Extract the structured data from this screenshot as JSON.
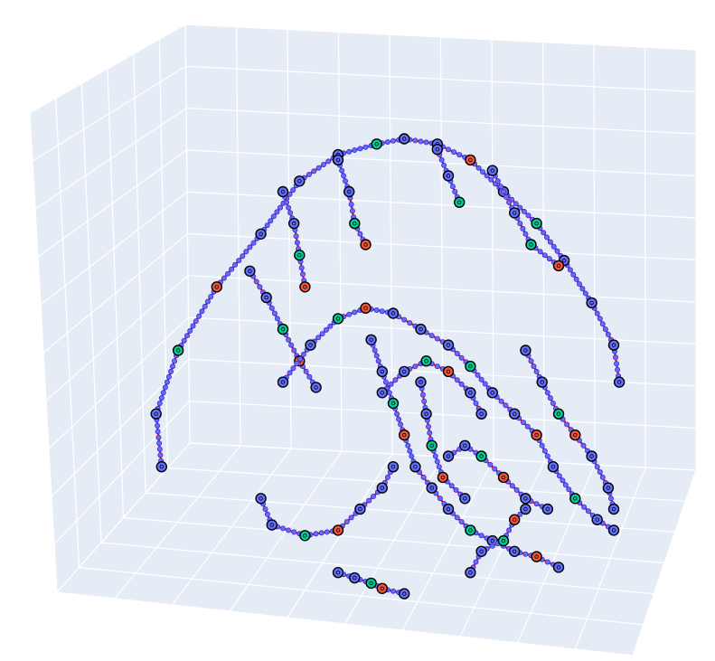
{
  "chart_data": {
    "type": "scatter3d",
    "title": "",
    "mode": "lines+markers",
    "scene": {
      "background": "#e5ecf6",
      "gridcolor": "#ffffff",
      "grid": true,
      "tick_labels": false,
      "axis_titles": false
    },
    "series": [
      {
        "traces": [
          {
            "color": "#ff0000",
            "points": [
              [
                0.08,
                0.72
              ],
              [
                0.07,
                0.62
              ],
              [
                0.11,
                0.5
              ],
              [
                0.18,
                0.38
              ],
              [
                0.26,
                0.28
              ],
              [
                0.33,
                0.18
              ],
              [
                0.4,
                0.13
              ],
              [
                0.47,
                0.11
              ],
              [
                0.52,
                0.1
              ],
              [
                0.58,
                0.11
              ],
              [
                0.64,
                0.14
              ],
              [
                0.7,
                0.2
              ],
              [
                0.76,
                0.26
              ],
              [
                0.81,
                0.33
              ],
              [
                0.86,
                0.41
              ],
              [
                0.9,
                0.49
              ],
              [
                0.91,
                0.56
              ]
            ]
          },
          {
            "color": "#ff0000",
            "points": [
              [
                0.3,
                0.2
              ],
              [
                0.32,
                0.26
              ],
              [
                0.33,
                0.32
              ],
              [
                0.34,
                0.38
              ]
            ]
          },
          {
            "color": "#ff0000",
            "points": [
              [
                0.4,
                0.14
              ],
              [
                0.42,
                0.2
              ],
              [
                0.43,
                0.26
              ],
              [
                0.45,
                0.3
              ]
            ]
          },
          {
            "color": "#ff0000",
            "points": [
              [
                0.58,
                0.12
              ],
              [
                0.6,
                0.17
              ],
              [
                0.62,
                0.22
              ]
            ]
          },
          {
            "color": "#ff0000",
            "points": [
              [
                0.68,
                0.16
              ],
              [
                0.72,
                0.24
              ],
              [
                0.75,
                0.3
              ],
              [
                0.8,
                0.34
              ]
            ]
          },
          {
            "color": "#ff0000",
            "points": [
              [
                0.24,
                0.35
              ],
              [
                0.27,
                0.4
              ],
              [
                0.3,
                0.46
              ],
              [
                0.33,
                0.52
              ],
              [
                0.36,
                0.57
              ]
            ]
          },
          {
            "color": "#ff0000",
            "points": [
              [
                0.26,
                0.78
              ],
              [
                0.28,
                0.83
              ],
              [
                0.34,
                0.85
              ],
              [
                0.4,
                0.84
              ],
              [
                0.44,
                0.8
              ],
              [
                0.48,
                0.76
              ],
              [
                0.5,
                0.72
              ]
            ]
          },
          {
            "color": "#ff0000",
            "points": [
              [
                0.3,
                0.56
              ],
              [
                0.35,
                0.49
              ],
              [
                0.4,
                0.44
              ],
              [
                0.45,
                0.42
              ],
              [
                0.5,
                0.43
              ],
              [
                0.55,
                0.46
              ],
              [
                0.6,
                0.49
              ],
              [
                0.64,
                0.53
              ],
              [
                0.68,
                0.58
              ],
              [
                0.72,
                0.62
              ],
              [
                0.76,
                0.66
              ],
              [
                0.79,
                0.72
              ],
              [
                0.83,
                0.78
              ],
              [
                0.87,
                0.82
              ],
              [
                0.9,
                0.84
              ]
            ]
          },
          {
            "color": "#ff0000",
            "points": [
              [
                0.46,
                0.48
              ],
              [
                0.48,
                0.54
              ],
              [
                0.5,
                0.6
              ],
              [
                0.52,
                0.66
              ],
              [
                0.54,
                0.72
              ],
              [
                0.57,
                0.76
              ],
              [
                0.6,
                0.8
              ],
              [
                0.64,
                0.84
              ],
              [
                0.68,
                0.86
              ],
              [
                0.72,
                0.88
              ],
              [
                0.76,
                0.89
              ],
              [
                0.8,
                0.91
              ]
            ]
          },
          {
            "color": "#ff0000",
            "points": [
              [
                0.48,
                0.58
              ],
              [
                0.52,
                0.54
              ],
              [
                0.56,
                0.52
              ],
              [
                0.6,
                0.54
              ],
              [
                0.64,
                0.58
              ],
              [
                0.66,
                0.62
              ]
            ]
          },
          {
            "color": "#ff0000",
            "points": [
              [
                0.55,
                0.56
              ],
              [
                0.56,
                0.62
              ],
              [
                0.57,
                0.68
              ],
              [
                0.59,
                0.74
              ],
              [
                0.63,
                0.78
              ]
            ]
          },
          {
            "color": "#ff0000",
            "points": [
              [
                0.74,
                0.5
              ],
              [
                0.77,
                0.56
              ],
              [
                0.8,
                0.62
              ],
              [
                0.83,
                0.66
              ],
              [
                0.86,
                0.7
              ],
              [
                0.89,
                0.76
              ],
              [
                0.9,
                0.8
              ]
            ]
          },
          {
            "color": "#ff0000",
            "points": [
              [
                0.6,
                0.7
              ],
              [
                0.63,
                0.68
              ],
              [
                0.66,
                0.7
              ],
              [
                0.7,
                0.74
              ],
              [
                0.74,
                0.78
              ],
              [
                0.78,
                0.8
              ]
            ]
          },
          {
            "color": "#ff0000",
            "points": [
              [
                0.4,
                0.92
              ],
              [
                0.43,
                0.93
              ],
              [
                0.46,
                0.94
              ],
              [
                0.48,
                0.95
              ],
              [
                0.52,
                0.96
              ]
            ]
          },
          {
            "color": "#ff0000",
            "points": [
              [
                0.64,
                0.92
              ],
              [
                0.66,
                0.88
              ],
              [
                0.7,
                0.86
              ],
              [
                0.72,
                0.82
              ],
              [
                0.74,
                0.8
              ]
            ]
          }
        ]
      }
    ],
    "marker": {
      "fill": "#636efa",
      "line": "#000000",
      "highlight_fills": [
        "#00cc96",
        "#ef553b"
      ]
    }
  }
}
